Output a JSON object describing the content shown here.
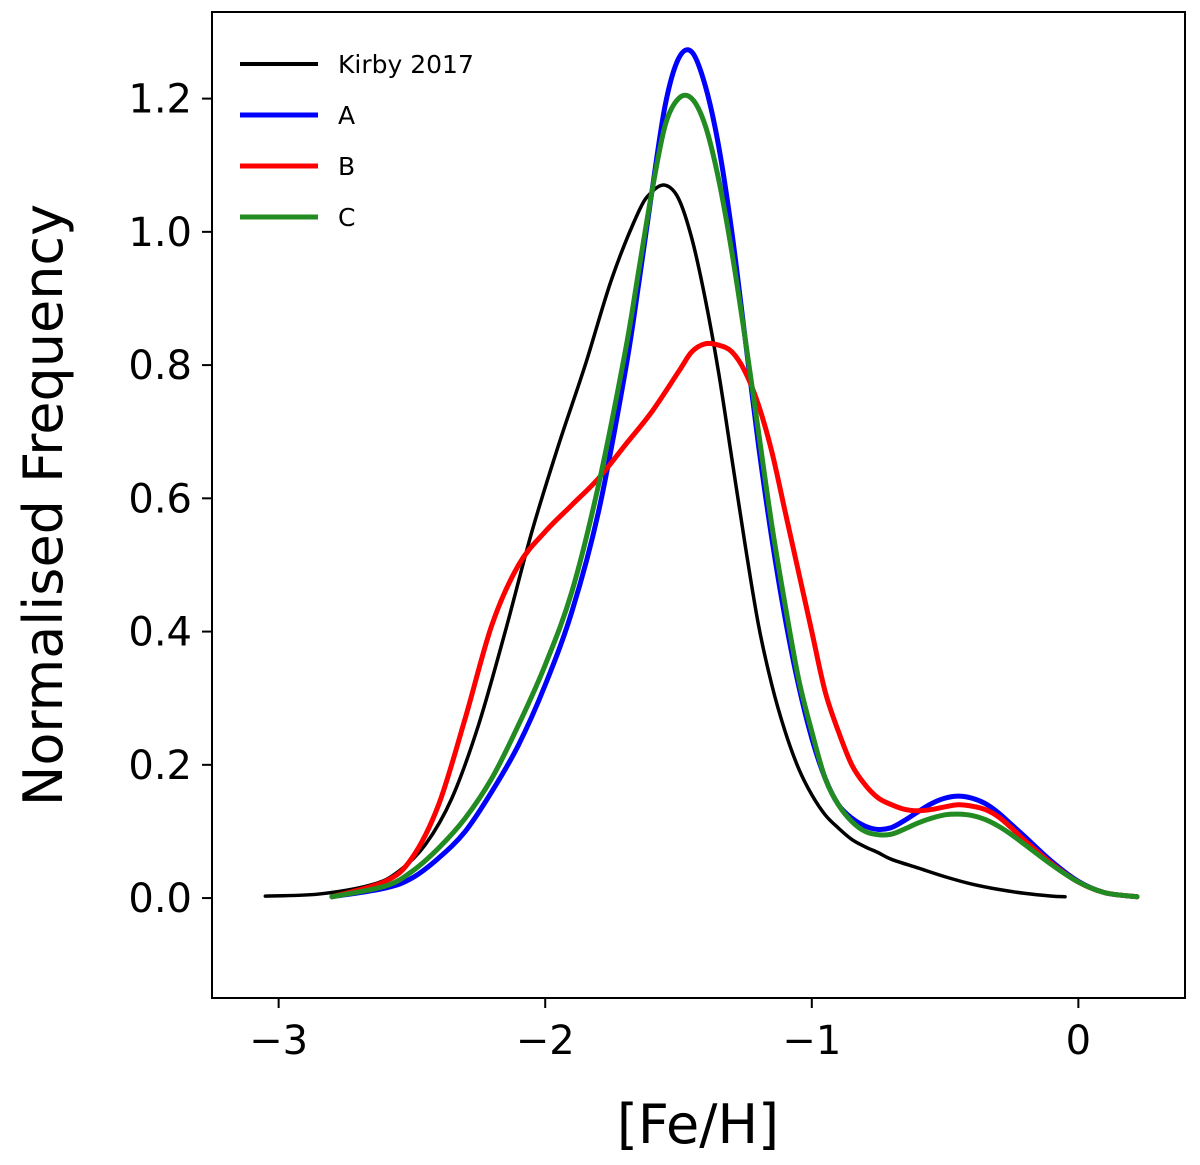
{
  "chart_data": {
    "type": "line",
    "title": "",
    "xlabel": "[Fe/H]",
    "ylabel": "Normalised Frequency",
    "xlim": [
      -3.25,
      0.4
    ],
    "ylim": [
      -0.15,
      1.33
    ],
    "xticks": [
      -3,
      -2,
      -1,
      0
    ],
    "xtick_labels": [
      "−3",
      "−2",
      "−1",
      "0"
    ],
    "yticks": [
      0.0,
      0.2,
      0.4,
      0.6,
      0.8,
      1.0,
      1.2
    ],
    "ytick_labels": [
      "0.0",
      "0.2",
      "0.4",
      "0.6",
      "0.8",
      "1.0",
      "1.2"
    ],
    "grid": false,
    "legend_position": "top-left",
    "series": [
      {
        "name": "Kirby 2017",
        "color": "#000000",
        "x": [
          -3.05,
          -2.85,
          -2.65,
          -2.55,
          -2.45,
          -2.35,
          -2.25,
          -2.15,
          -2.05,
          -1.95,
          -1.85,
          -1.75,
          -1.65,
          -1.6,
          -1.55,
          -1.5,
          -1.45,
          -1.4,
          -1.35,
          -1.3,
          -1.25,
          -1.2,
          -1.15,
          -1.1,
          -1.05,
          -1.0,
          -0.95,
          -0.9,
          -0.85,
          -0.8,
          -0.75,
          -0.7,
          -0.6,
          -0.5,
          -0.4,
          -0.3,
          -0.2,
          -0.1,
          -0.05
        ],
        "y": [
          0.003,
          0.006,
          0.02,
          0.04,
          0.08,
          0.15,
          0.26,
          0.4,
          0.55,
          0.68,
          0.8,
          0.93,
          1.03,
          1.06,
          1.07,
          1.05,
          0.99,
          0.9,
          0.79,
          0.66,
          0.53,
          0.41,
          0.32,
          0.25,
          0.195,
          0.155,
          0.125,
          0.105,
          0.088,
          0.077,
          0.068,
          0.058,
          0.045,
          0.032,
          0.021,
          0.013,
          0.007,
          0.003,
          0.002
        ]
      },
      {
        "name": "A",
        "color": "#0000ff",
        "x": [
          -2.8,
          -2.6,
          -2.5,
          -2.4,
          -2.3,
          -2.2,
          -2.1,
          -2.0,
          -1.9,
          -1.8,
          -1.7,
          -1.65,
          -1.6,
          -1.55,
          -1.5,
          -1.45,
          -1.4,
          -1.35,
          -1.3,
          -1.25,
          -1.2,
          -1.15,
          -1.1,
          -1.05,
          -1.0,
          -0.95,
          -0.9,
          -0.85,
          -0.8,
          -0.75,
          -0.7,
          -0.65,
          -0.6,
          -0.55,
          -0.5,
          -0.45,
          -0.4,
          -0.35,
          -0.3,
          -0.25,
          -0.2,
          -0.1,
          0.0,
          0.1,
          0.22
        ],
        "y": [
          0.002,
          0.015,
          0.03,
          0.06,
          0.1,
          0.16,
          0.23,
          0.32,
          0.43,
          0.58,
          0.79,
          0.92,
          1.06,
          1.19,
          1.26,
          1.27,
          1.22,
          1.13,
          1.0,
          0.84,
          0.68,
          0.54,
          0.42,
          0.32,
          0.24,
          0.18,
          0.14,
          0.12,
          0.108,
          0.103,
          0.106,
          0.117,
          0.13,
          0.142,
          0.15,
          0.153,
          0.15,
          0.142,
          0.128,
          0.11,
          0.092,
          0.055,
          0.025,
          0.008,
          0.002
        ]
      },
      {
        "name": "B",
        "color": "#ff0000",
        "x": [
          -2.8,
          -2.6,
          -2.5,
          -2.4,
          -2.3,
          -2.2,
          -2.1,
          -2.0,
          -1.9,
          -1.8,
          -1.7,
          -1.6,
          -1.5,
          -1.45,
          -1.4,
          -1.35,
          -1.3,
          -1.25,
          -1.2,
          -1.15,
          -1.1,
          -1.05,
          -1.0,
          -0.95,
          -0.9,
          -0.85,
          -0.8,
          -0.75,
          -0.7,
          -0.65,
          -0.6,
          -0.55,
          -0.5,
          -0.45,
          -0.4,
          -0.35,
          -0.3,
          -0.25,
          -0.2,
          -0.1,
          0.0,
          0.1,
          0.22
        ],
        "y": [
          0.002,
          0.025,
          0.06,
          0.14,
          0.27,
          0.41,
          0.5,
          0.55,
          0.59,
          0.63,
          0.68,
          0.73,
          0.79,
          0.82,
          0.832,
          0.83,
          0.82,
          0.79,
          0.74,
          0.67,
          0.58,
          0.49,
          0.4,
          0.31,
          0.25,
          0.2,
          0.17,
          0.15,
          0.14,
          0.133,
          0.131,
          0.133,
          0.137,
          0.14,
          0.138,
          0.133,
          0.122,
          0.105,
          0.086,
          0.052,
          0.024,
          0.008,
          0.002
        ]
      },
      {
        "name": "C",
        "color": "#228b22",
        "x": [
          -2.8,
          -2.6,
          -2.5,
          -2.4,
          -2.3,
          -2.2,
          -2.1,
          -2.0,
          -1.9,
          -1.8,
          -1.7,
          -1.65,
          -1.6,
          -1.55,
          -1.5,
          -1.45,
          -1.4,
          -1.35,
          -1.3,
          -1.25,
          -1.2,
          -1.15,
          -1.1,
          -1.05,
          -1.0,
          -0.95,
          -0.9,
          -0.85,
          -0.8,
          -0.75,
          -0.7,
          -0.65,
          -0.6,
          -0.55,
          -0.5,
          -0.45,
          -0.4,
          -0.35,
          -0.3,
          -0.25,
          -0.2,
          -0.1,
          0.0,
          0.1,
          0.22
        ],
        "y": [
          0.002,
          0.018,
          0.04,
          0.075,
          0.12,
          0.18,
          0.26,
          0.35,
          0.46,
          0.62,
          0.82,
          0.94,
          1.06,
          1.16,
          1.2,
          1.2,
          1.16,
          1.08,
          0.97,
          0.84,
          0.7,
          0.56,
          0.44,
          0.33,
          0.25,
          0.18,
          0.14,
          0.115,
          0.1,
          0.095,
          0.096,
          0.104,
          0.113,
          0.12,
          0.125,
          0.126,
          0.124,
          0.118,
          0.108,
          0.095,
          0.08,
          0.05,
          0.024,
          0.008,
          0.002
        ]
      }
    ]
  }
}
